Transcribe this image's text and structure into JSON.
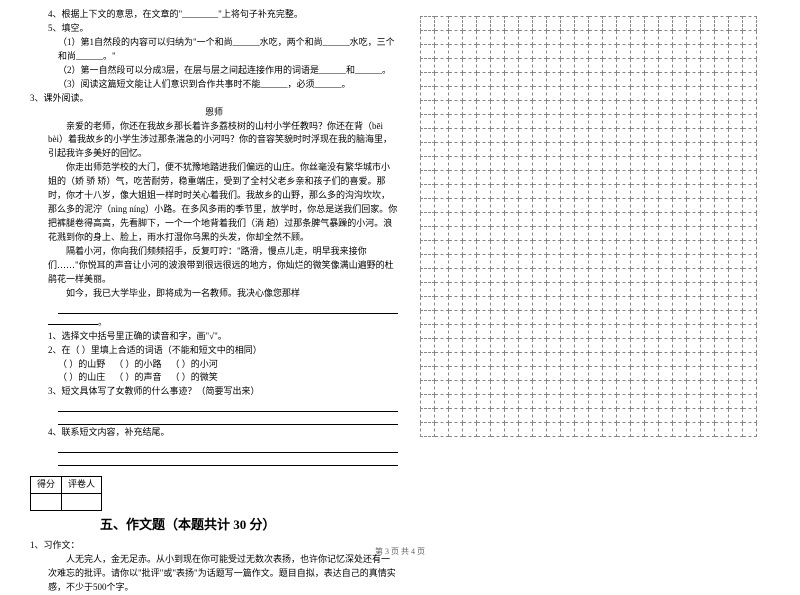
{
  "q4": "4、根据上下文的意思，在文章的\"________\"上将句子补充完整。",
  "q5": "5、填空。",
  "q5_1": "（1）第1自然段的内容可以归纳为\"一个和尚______水吃，两个和尚______水吃，三个和尚______。\"",
  "q5_2": "（2）第一自然段可以分成3层，在层与层之间起连接作用的词语是______和______。",
  "q5_3": "（3）阅读这篇短文能让人们意识到合作共事时不能______，必须______。",
  "q3_title": "3、课外阅读。",
  "essay_title": "恩师",
  "p1": "亲爱的老师，你还在我故乡那长着许多荔枝树的山村小学任教吗？你还在背（bēi bèi）着我故乡的小学生涉过那条湍急的小河吗？你的音容笑貌时时浮现在我的脑海里，引起我许多美好的回忆。",
  "p2": "你走出师范学校的大门，便不犹豫地踏进我们偏远的山庄。你丝毫没有繁华城市小姐的（娇 骄 矫）气，吃苦耐劳，稳重端庄，受到了全村父老乡亲和孩子们的喜爱。那时，你才十八岁，像大姐姐一样时时关心着我们。我故乡的山野，那么多的沟沟坎坎，那么多的泥泞（nìng níng）小路。在多风多雨的季节里，放学时，你总是送我们回家。你把裤腿卷得高高，先看脚下，一个一个地背着我们（淌 趟）过那条脾气暴躁的小河。浪花溅到你的身上、脸上，雨水打湿你乌黑的头发，你却全然不顾。",
  "p3": "隔着小河，你向我们频频招手，反复叮咛：\"路滑，慢点儿走，明早我来接你们……\"你悦耳的声音让小河的波浪带到很远很远的地方，你灿烂的微笑像满山遍野的杜鹃花一样美丽。",
  "p4a": "如今，我已大学毕业，即将成为一名教师。我决心像您那样",
  "p4b": "。",
  "sub1": "1、选择文中括号里正确的读音和字，画\"√\"。",
  "sub2": "2、在（    ）里填上合适的词语（不能和短文中的相同）",
  "sub2_line1_a": "（        ）的山野",
  "sub2_line1_b": "（        ）的小路",
  "sub2_line1_c": "（        ）的小河",
  "sub2_line2_a": "（        ）的山庄",
  "sub2_line2_b": "（        ）的声音",
  "sub2_line2_c": "（        ）的微笑",
  "sub3": "3、短文具体写了女教师的什么事迹？（简要写出来）",
  "sub4": "4、联系短文内容，补充结尾。",
  "score_label1": "得分",
  "score_label2": "评卷人",
  "section5": "五、作文题（本题共计 30 分）",
  "compose_title": "1、习作文：",
  "compose_body": "人无完人，金无足赤。从小到现在你可能受过无数次表扬，也许你记忆深处还有一次难忘的批评。请你以\"批评\"或\"表扬\"为话题写一篇作文。题目自拟，表达自己的真情实感，不少于500个字。",
  "footer": "第 3 页 共 4 页",
  "grid": {
    "rows": 30,
    "cols": 24
  }
}
